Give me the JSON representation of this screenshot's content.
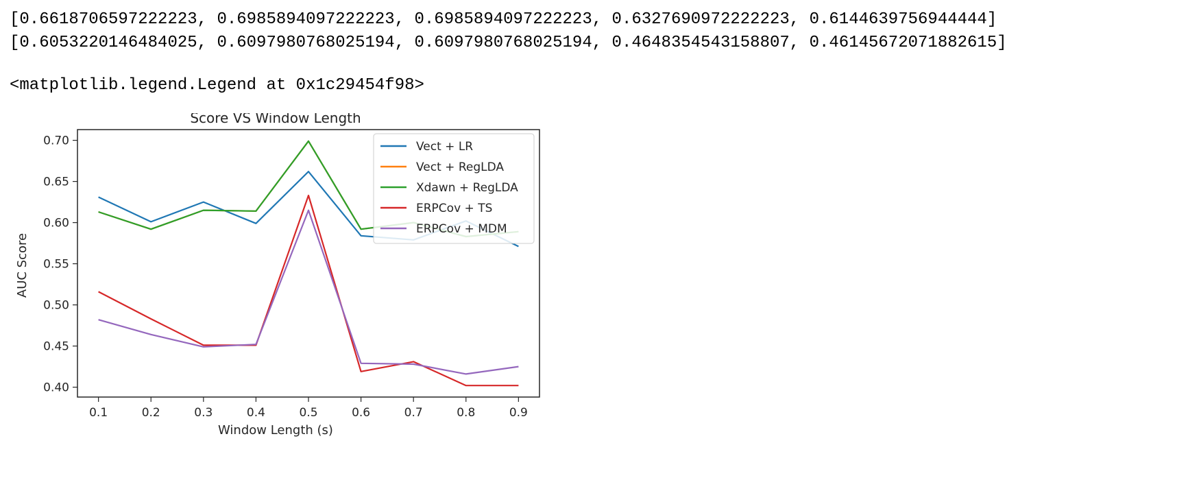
{
  "output": {
    "line1": "[0.6618706597222223, 0.6985894097222223, 0.6985894097222223, 0.6327690972222223, 0.6144639756944444]",
    "line2": "[0.6053220146484025, 0.6097980768025194, 0.6097980768025194, 0.4648354543158807, 0.46145672071882615]",
    "line3": "<matplotlib.legend.Legend at 0x1c29454f98>"
  },
  "chart_data": {
    "type": "line",
    "title": "Score VS Window Length",
    "xlabel": "Window Length (s)",
    "ylabel": "AUC Score",
    "x": [
      0.1,
      0.2,
      0.3,
      0.4,
      0.5,
      0.6,
      0.7,
      0.8,
      0.9
    ],
    "xticks": [
      "0.1",
      "0.2",
      "0.3",
      "0.4",
      "0.5",
      "0.6",
      "0.7",
      "0.8",
      "0.9"
    ],
    "yticks": [
      "0.40",
      "0.45",
      "0.50",
      "0.55",
      "0.60",
      "0.65",
      "0.70"
    ],
    "xlim": [
      0.06,
      0.94
    ],
    "ylim": [
      0.388,
      0.713
    ],
    "grid": false,
    "legend_position": "top-right",
    "series": [
      {
        "name": "Vect + LR",
        "color": "#1f77b4",
        "values": [
          0.631,
          0.601,
          0.625,
          0.599,
          0.662,
          0.584,
          0.579,
          0.602,
          0.571
        ]
      },
      {
        "name": "Vect + RegLDA",
        "color": "#ff7f0e",
        "values": [
          0.613,
          0.592,
          0.615,
          0.614,
          0.699,
          0.592,
          0.6,
          0.583,
          0.589
        ]
      },
      {
        "name": "Xdawn + RegLDA",
        "color": "#2ca02c",
        "values": [
          0.613,
          0.592,
          0.615,
          0.614,
          0.699,
          0.592,
          0.6,
          0.583,
          0.589
        ]
      },
      {
        "name": "ERPCov + TS",
        "color": "#d62728",
        "values": [
          0.516,
          0.483,
          0.451,
          0.451,
          0.633,
          0.419,
          0.431,
          0.402,
          0.402
        ]
      },
      {
        "name": "ERPCov + MDM",
        "color": "#9467bd",
        "values": [
          0.482,
          0.464,
          0.449,
          0.452,
          0.615,
          0.429,
          0.428,
          0.416,
          0.425
        ]
      }
    ]
  }
}
